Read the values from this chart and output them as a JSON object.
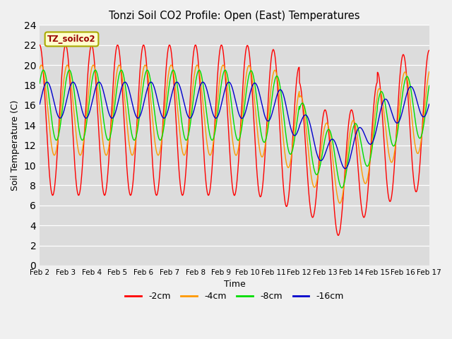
{
  "title": "Tonzi Soil CO2 Profile: Open (East) Temperatures",
  "xlabel": "Time",
  "ylabel": "Soil Temperature (C)",
  "ylim": [
    0,
    24
  ],
  "yticks": [
    0,
    2,
    4,
    6,
    8,
    10,
    12,
    14,
    16,
    18,
    20,
    22,
    24
  ],
  "xtick_labels": [
    "Feb 2",
    "Feb 3",
    "Feb 4",
    "Feb 5",
    "Feb 6",
    "Feb 7",
    "Feb 8",
    "Feb 9",
    "Feb 10",
    "Feb 11",
    "Feb 12",
    "Feb 13",
    "Feb 14",
    "Feb 15",
    "Feb 16",
    "Feb 17"
  ],
  "colors": {
    "-2cm": "#ff0000",
    "-4cm": "#ff9900",
    "-8cm": "#00dd00",
    "-16cm": "#0000cc"
  },
  "legend_label": "TZ_soilco2",
  "fig_bg": "#f0f0f0",
  "ax_bg": "#dcdcdc"
}
